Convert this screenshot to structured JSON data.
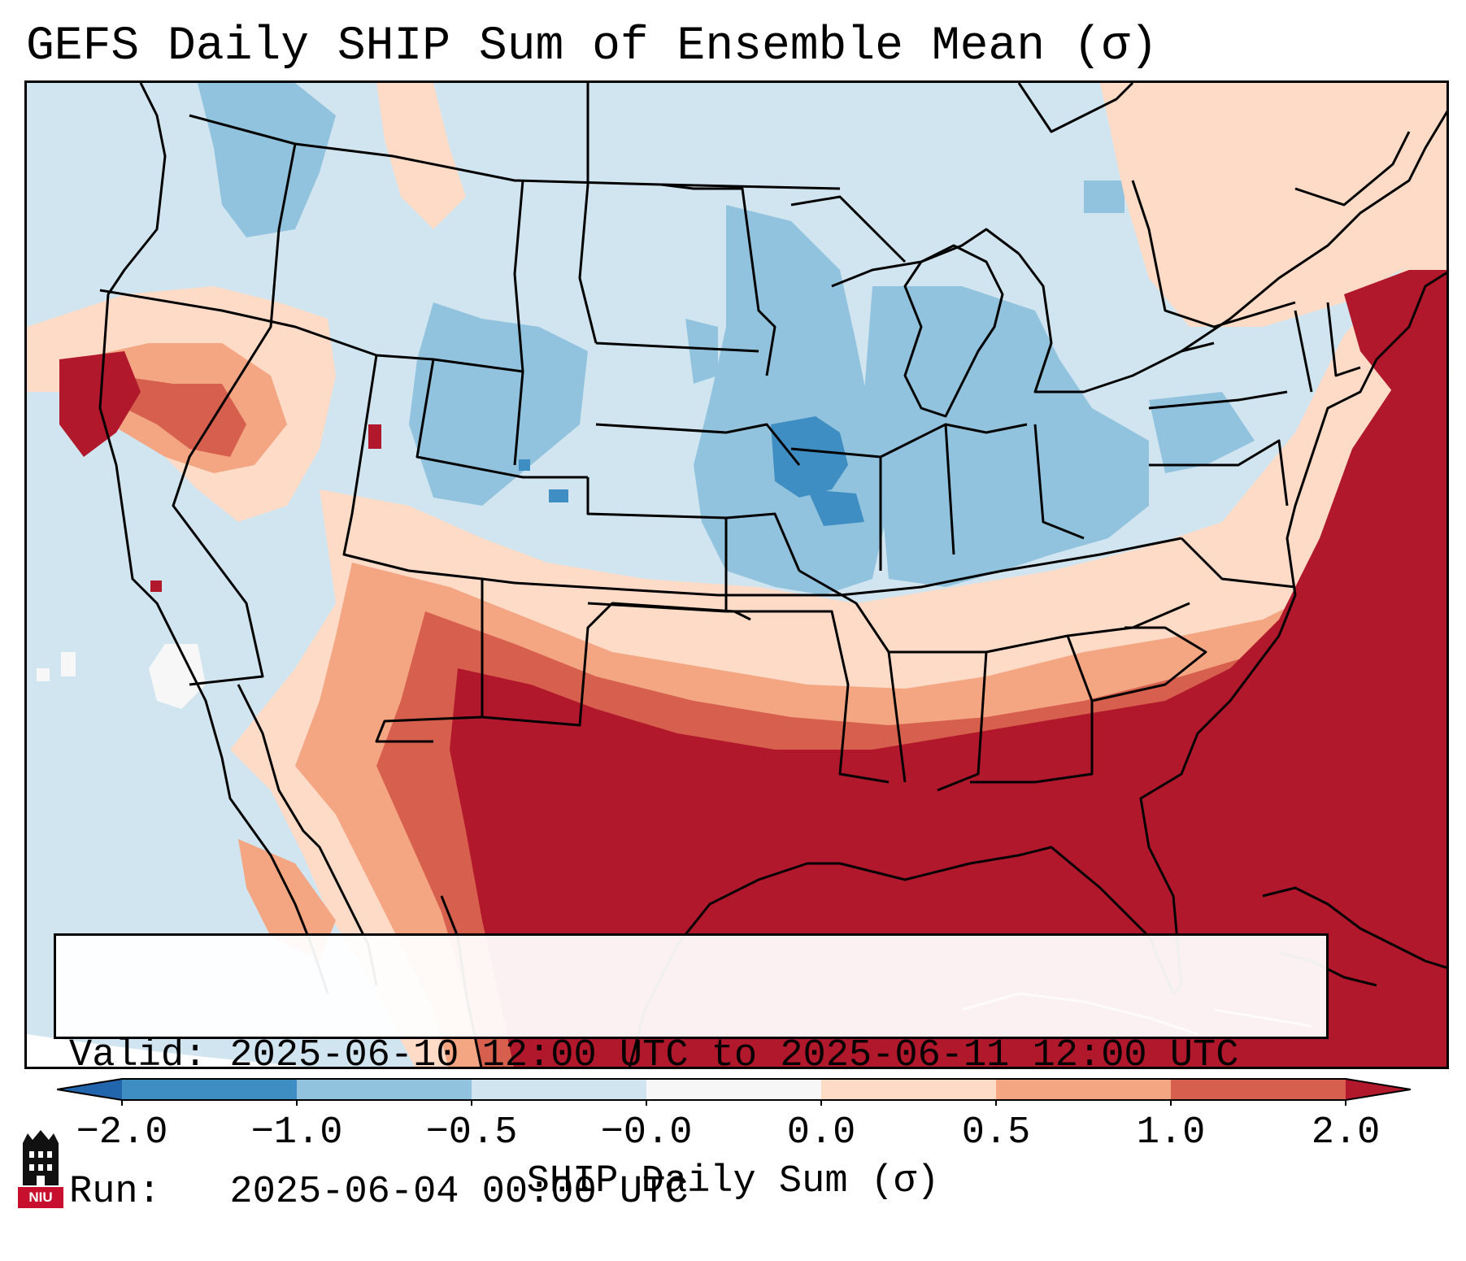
{
  "title": "GEFS Daily SHIP Sum of Ensemble Mean (σ)",
  "info": {
    "valid_line": "Valid: 2025-06-10 12:00 UTC to 2025-06-11 12:00 UTC",
    "run_line": "Run:   2025-06-04 00:00 UTC"
  },
  "colorbar": {
    "label": "SHIP Daily Sum (σ)",
    "ticks": [
      "−2.0",
      "−1.0",
      "−0.5",
      "−0.0",
      "0.0",
      "0.5",
      "1.0",
      "2.0"
    ],
    "colors": [
      "#3f8ec3",
      "#92c3de",
      "#d1e5f0",
      "#f7f7f7",
      "#fddbc7",
      "#f4a582",
      "#d6604d"
    ],
    "extend_min_color": "#2166ac",
    "extend_max_color": "#b2182b"
  },
  "map": {
    "background_color": "#d1e5f0",
    "domain": "North America (CONUS)",
    "layers": [
      "shading",
      "state-borders",
      "coastlines",
      "country-borders"
    ]
  },
  "logo": {
    "text": "NIU",
    "color": "#c8102e"
  }
}
